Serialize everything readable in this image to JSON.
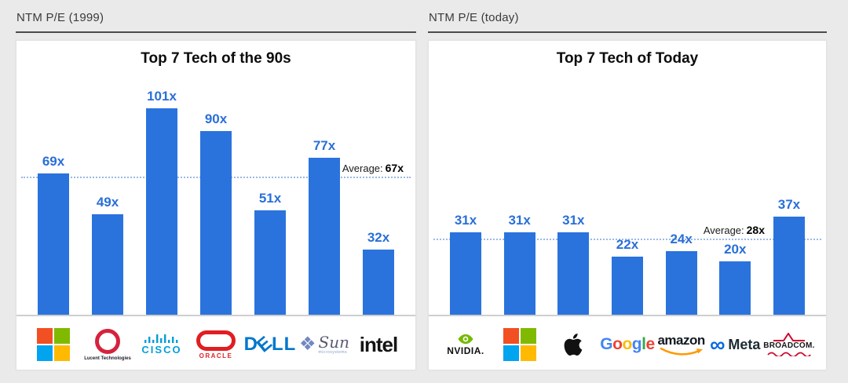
{
  "page_background": "#eaeaea",
  "accent": {
    "bar_blue": "#2a73dd",
    "value_label_blue": "#2a6fd8",
    "average_line_blue": "#9cb8e9"
  },
  "panels": [
    {
      "header": "NTM P/E (1999)"
    },
    {
      "header": "NTM P/E (today)"
    }
  ],
  "chart_data": [
    {
      "type": "bar",
      "title": "Top 7 Tech of the 90s",
      "categories": [
        "Microsoft",
        "Lucent Technologies",
        "Cisco",
        "Oracle",
        "Dell",
        "Sun Microsystems",
        "Intel"
      ],
      "values": [
        69,
        49,
        101,
        90,
        51,
        77,
        32
      ],
      "value_suffix": "x",
      "value_labels": [
        "69x",
        "49x",
        "101x",
        "90x",
        "51x",
        "77x",
        "32x"
      ],
      "average": 67,
      "average_prefix": "Average:",
      "average_value": "67x",
      "logo_keys": [
        "microsoft",
        "lucent",
        "cisco",
        "oracle",
        "dell",
        "sun",
        "intel"
      ],
      "xlabel": "",
      "ylabel": "",
      "grid": false,
      "legend": false,
      "ylim": [
        0,
        120
      ]
    },
    {
      "type": "bar",
      "title": "Top 7 Tech of Today",
      "categories": [
        "NVIDIA",
        "Microsoft",
        "Apple",
        "Google",
        "Amazon",
        "Meta",
        "Broadcom"
      ],
      "values": [
        31,
        31,
        31,
        22,
        24,
        20,
        37
      ],
      "value_suffix": "x",
      "value_labels": [
        "31x",
        "31x",
        "31x",
        "22x",
        "24x",
        "20x",
        "37x"
      ],
      "average": 28,
      "average_prefix": "Average:",
      "average_value": "28x",
      "logo_keys": [
        "nvidia",
        "microsoft",
        "apple",
        "google",
        "amazon",
        "meta",
        "broadcom"
      ],
      "xlabel": "",
      "ylabel": "",
      "grid": false,
      "legend": false,
      "ylim": [
        0,
        93
      ]
    }
  ],
  "logo_text": {
    "lucent": "Lucent Technologies",
    "cisco": "CISCO",
    "oracle": "ORACLE",
    "dell_d": "D",
    "dell_e": "E",
    "dell_ll": "LL",
    "sun": "Sun",
    "sun_sub": "microsystems",
    "sun_icon_glyph": "❖",
    "intel": "intel",
    "nvidia": "NVIDIA.",
    "google_letters": [
      "G",
      "o",
      "o",
      "g",
      "l",
      "e"
    ],
    "amazon": "amazon",
    "meta_infinity": "∞",
    "meta": "Meta",
    "broadcom": "BROADCOM."
  },
  "brand_colors": {
    "microsoft": [
      "#f25022",
      "#7fba00",
      "#00a4ef",
      "#ffb900"
    ],
    "lucent": "#d5233d",
    "cisco": "#049fd9",
    "oracle": "#e01e23",
    "dell": "#0076ce",
    "sun_icon": "#7188c1",
    "sun_text": "#5c5c74",
    "intel": "#141414",
    "nvidia": "#76b900",
    "apple": "#111111",
    "google": [
      "#4285F4",
      "#EA4335",
      "#FBBC05",
      "#4285F4",
      "#34A853",
      "#EA4335"
    ],
    "amazon_text": "#131921",
    "amazon_smile": "#ff9900",
    "meta": "#0668e1",
    "meta_text": "#1c2b33",
    "broadcom_red": "#cc092f",
    "broadcom_text": "#16161a"
  }
}
